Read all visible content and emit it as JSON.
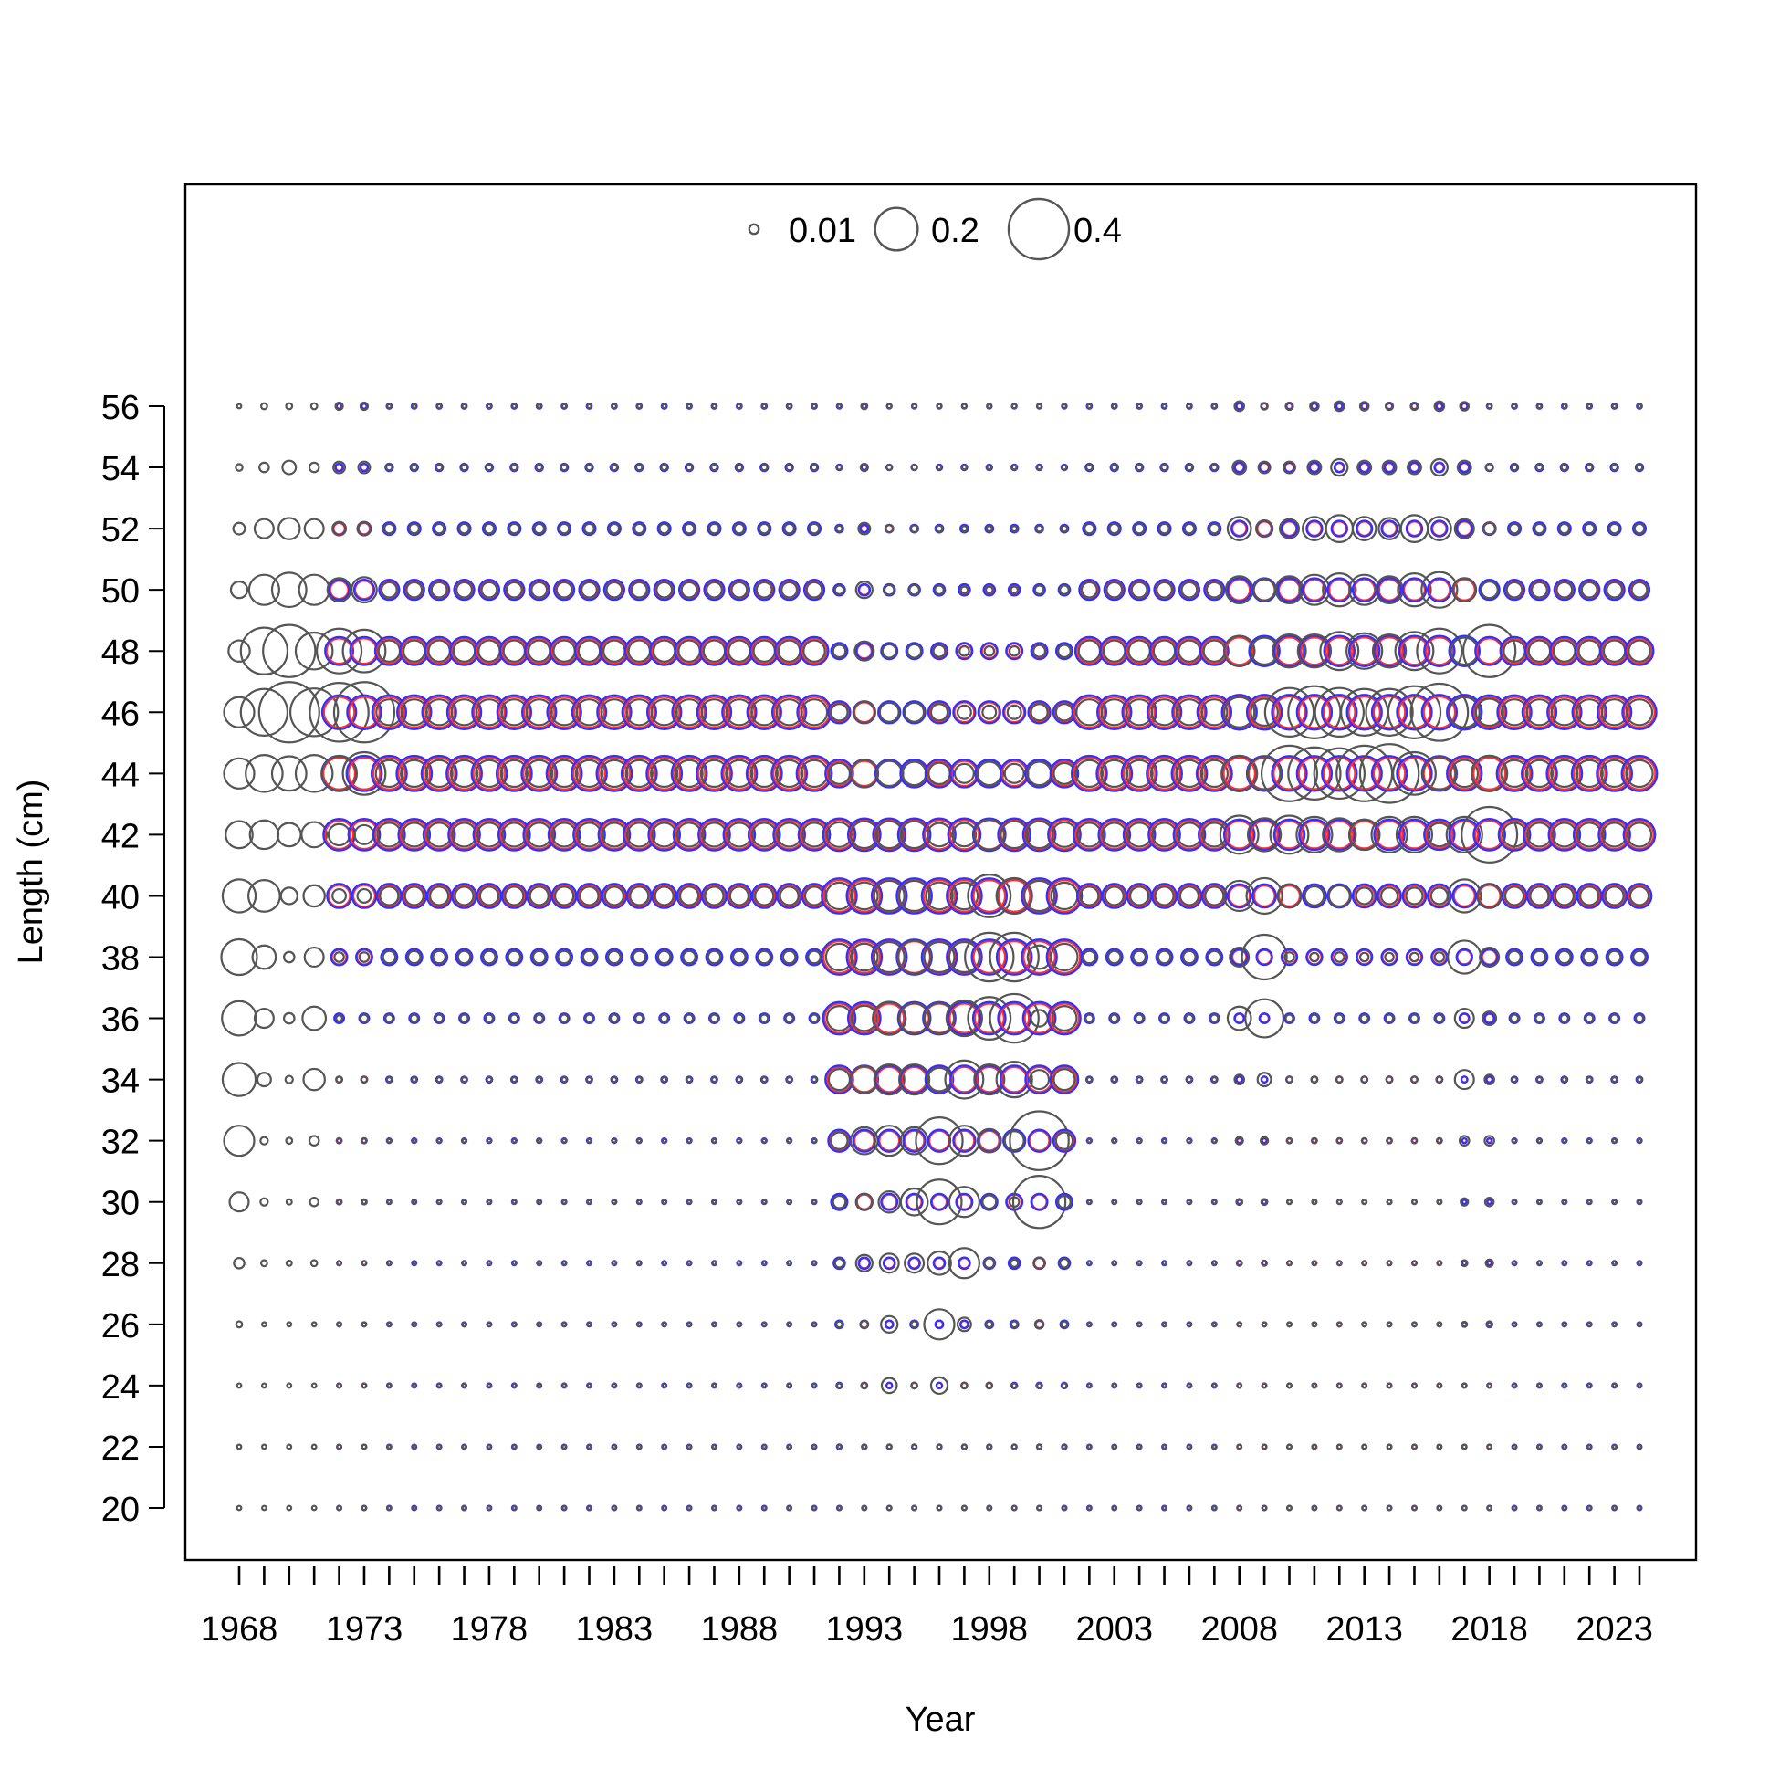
{
  "chart_data": {
    "type": "scatter",
    "subtype": "bubble",
    "xlabel": "Year",
    "ylabel": "Length (cm)",
    "xlim": [
      1966.2,
      2026.8
    ],
    "ylim": [
      19,
      59
    ],
    "x_tick_labels": [
      "1968",
      "1973",
      "1978",
      "1983",
      "1988",
      "1993",
      "1998",
      "2003",
      "2008",
      "2013",
      "2018",
      "2023"
    ],
    "y_tick_labels": [
      "20",
      "22",
      "24",
      "26",
      "28",
      "30",
      "32",
      "34",
      "36",
      "38",
      "40",
      "42",
      "44",
      "46",
      "48",
      "50",
      "52",
      "54",
      "56"
    ],
    "minor_x_ticks": "every year 1968-2024",
    "legend": {
      "placement": "top-center",
      "entries": [
        {
          "label": "0.01",
          "size": 0.01
        },
        {
          "label": "0.2",
          "size": 0.2
        },
        {
          "label": "0.4",
          "size": 0.4
        }
      ]
    },
    "lengths": [
      20,
      22,
      24,
      26,
      28,
      30,
      32,
      34,
      36,
      38,
      40,
      42,
      44,
      46,
      48,
      50,
      52,
      54,
      56
    ],
    "colors": {
      "observed": "#555555",
      "expected_a": "#ff3030",
      "expected_b": "#3030ff"
    },
    "observed_columns": [
      {
        "year": 1968,
        "values": [
          0.002,
          0.002,
          0.002,
          0.004,
          0.012,
          0.04,
          0.1,
          0.12,
          0.13,
          0.14,
          0.12,
          0.08,
          0.1,
          0.1,
          0.05,
          0.03,
          0.015,
          0.005,
          0.002
        ]
      },
      {
        "year": 1969,
        "values": [
          0.002,
          0.002,
          0.002,
          0.002,
          0.004,
          0.006,
          0.006,
          0.02,
          0.04,
          0.06,
          0.11,
          0.09,
          0.15,
          0.24,
          0.24,
          0.1,
          0.04,
          0.01,
          0.004
        ]
      },
      {
        "year": 1970,
        "values": [
          0.002,
          0.002,
          0.002,
          0.002,
          0.003,
          0.003,
          0.004,
          0.006,
          0.012,
          0.012,
          0.03,
          0.06,
          0.13,
          0.4,
          0.3,
          0.13,
          0.05,
          0.02,
          0.004
        ]
      },
      {
        "year": 1971,
        "values": [
          0.002,
          0.002,
          0.002,
          0.002,
          0.004,
          0.008,
          0.01,
          0.05,
          0.06,
          0.04,
          0.05,
          0.07,
          0.15,
          0.25,
          0.15,
          0.1,
          0.04,
          0.01,
          0.004
        ]
      },
      {
        "year": 1972,
        "values": [
          0.002,
          0.002,
          0.002,
          0.002,
          0.002,
          0.003,
          0.003,
          0.004,
          0.004,
          0.01,
          0.02,
          0.05,
          0.13,
          0.38,
          0.22,
          0.06,
          0.02,
          0.015,
          0.006
        ]
      },
      {
        "year": 1973,
        "values": [
          0.002,
          0.002,
          0.002,
          0.002,
          0.002,
          0.003,
          0.003,
          0.004,
          0.006,
          0.01,
          0.02,
          0.04,
          0.2,
          0.4,
          0.2,
          0.07,
          0.02,
          0.015,
          0.006
        ]
      },
      {
        "year": 1993,
        "values": [
          0.002,
          0.002,
          0.004,
          0.006,
          0.03,
          0.03,
          0.08,
          0.08,
          0.07,
          0.08,
          0.08,
          0.08,
          0.08,
          0.05,
          0.04,
          0.03,
          0.015,
          0.006,
          0.004
        ]
      },
      {
        "year": 1994,
        "values": [
          0.002,
          0.002,
          0.025,
          0.03,
          0.04,
          0.05,
          0.1,
          0.1,
          0.12,
          0.1,
          0.1,
          0.08,
          0.07,
          0.04,
          0.02,
          0.01,
          0.006,
          0.003,
          0.002
        ]
      },
      {
        "year": 1995,
        "values": [
          0.002,
          0.002,
          0.004,
          0.004,
          0.04,
          0.08,
          0.08,
          0.1,
          0.1,
          0.12,
          0.1,
          0.08,
          0.06,
          0.04,
          0.02,
          0.01,
          0.005,
          0.003,
          0.002
        ]
      },
      {
        "year": 1996,
        "values": [
          0.002,
          0.002,
          0.03,
          0.1,
          0.06,
          0.22,
          0.24,
          0.06,
          0.1,
          0.1,
          0.08,
          0.06,
          0.05,
          0.03,
          0.015,
          0.008,
          0.004,
          0.002,
          0.002
        ]
      },
      {
        "year": 1997,
        "values": [
          0.002,
          0.002,
          0.004,
          0.02,
          0.1,
          0.1,
          0.1,
          0.16,
          0.14,
          0.1,
          0.08,
          0.06,
          0.04,
          0.02,
          0.01,
          0.005,
          0.003,
          0.002,
          0.002
        ]
      },
      {
        "year": 1998,
        "values": [
          0.002,
          0.002,
          0.004,
          0.004,
          0.01,
          0.02,
          0.06,
          0.1,
          0.2,
          0.26,
          0.2,
          0.1,
          0.06,
          0.02,
          0.01,
          0.005,
          0.003,
          0.002,
          0.002
        ]
      },
      {
        "year": 1999,
        "values": [
          0.002,
          0.002,
          0.002,
          0.004,
          0.006,
          0.01,
          0.04,
          0.14,
          0.26,
          0.26,
          0.14,
          0.08,
          0.04,
          0.02,
          0.01,
          0.005,
          0.003,
          0.002,
          0.002
        ]
      },
      {
        "year": 2000,
        "values": [
          0.002,
          0.002,
          0.002,
          0.008,
          0.014,
          0.3,
          0.38,
          0.04,
          0.03,
          0.06,
          0.1,
          0.08,
          0.06,
          0.03,
          0.015,
          0.008,
          0.004,
          0.002,
          0.002
        ]
      },
      {
        "year": 2008,
        "values": [
          0.002,
          0.002,
          0.002,
          0.002,
          0.003,
          0.004,
          0.006,
          0.01,
          0.06,
          0.04,
          0.1,
          0.16,
          0.14,
          0.1,
          0.1,
          0.08,
          0.06,
          0.02,
          0.01
        ]
      },
      {
        "year": 2009,
        "values": [
          0.002,
          0.002,
          0.002,
          0.002,
          0.003,
          0.004,
          0.006,
          0.02,
          0.16,
          0.22,
          0.14,
          0.12,
          0.12,
          0.08,
          0.08,
          0.05,
          0.03,
          0.015,
          0.005
        ]
      },
      {
        "year": 2010,
        "values": [
          0.002,
          0.002,
          0.002,
          0.002,
          0.002,
          0.002,
          0.003,
          0.004,
          0.006,
          0.01,
          0.06,
          0.16,
          0.34,
          0.26,
          0.12,
          0.08,
          0.04,
          0.015,
          0.006
        ]
      },
      {
        "year": 2011,
        "values": [
          0.002,
          0.002,
          0.002,
          0.002,
          0.002,
          0.002,
          0.003,
          0.004,
          0.006,
          0.008,
          0.04,
          0.14,
          0.3,
          0.3,
          0.12,
          0.1,
          0.06,
          0.02,
          0.008
        ]
      },
      {
        "year": 2012,
        "values": [
          0.002,
          0.002,
          0.002,
          0.002,
          0.002,
          0.002,
          0.003,
          0.004,
          0.006,
          0.01,
          0.05,
          0.12,
          0.28,
          0.26,
          0.16,
          0.12,
          0.08,
          0.03,
          0.01
        ]
      },
      {
        "year": 2013,
        "values": [
          0.002,
          0.002,
          0.002,
          0.002,
          0.002,
          0.002,
          0.003,
          0.004,
          0.006,
          0.008,
          0.03,
          0.1,
          0.34,
          0.24,
          0.14,
          0.1,
          0.06,
          0.02,
          0.008
        ]
      },
      {
        "year": 2014,
        "values": [
          0.002,
          0.002,
          0.002,
          0.002,
          0.002,
          0.002,
          0.003,
          0.004,
          0.006,
          0.008,
          0.03,
          0.14,
          0.38,
          0.24,
          0.12,
          0.08,
          0.05,
          0.02,
          0.006
        ]
      },
      {
        "year": 2015,
        "values": [
          0.002,
          0.002,
          0.002,
          0.002,
          0.002,
          0.002,
          0.003,
          0.004,
          0.006,
          0.008,
          0.03,
          0.14,
          0.2,
          0.3,
          0.16,
          0.12,
          0.08,
          0.02,
          0.006
        ]
      },
      {
        "year": 2016,
        "values": [
          0.002,
          0.002,
          0.002,
          0.002,
          0.002,
          0.002,
          0.003,
          0.004,
          0.006,
          0.01,
          0.03,
          0.06,
          0.12,
          0.36,
          0.22,
          0.14,
          0.06,
          0.03,
          0.01
        ]
      },
      {
        "year": 2017,
        "values": [
          0.002,
          0.002,
          0.002,
          0.003,
          0.004,
          0.006,
          0.01,
          0.04,
          0.04,
          0.12,
          0.12,
          0.14,
          0.08,
          0.1,
          0.08,
          0.06,
          0.04,
          0.02,
          0.008
        ]
      },
      {
        "year": 2018,
        "values": [
          0.002,
          0.002,
          0.002,
          0.004,
          0.006,
          0.008,
          0.01,
          0.01,
          0.02,
          0.04,
          0.06,
          0.34,
          0.14,
          0.08,
          0.3,
          0.03,
          0.015,
          0.005,
          0.002
        ]
      }
    ],
    "expected_columns_cover_years": [
      1972,
      2024
    ],
    "note_missing_observed": ""
  }
}
